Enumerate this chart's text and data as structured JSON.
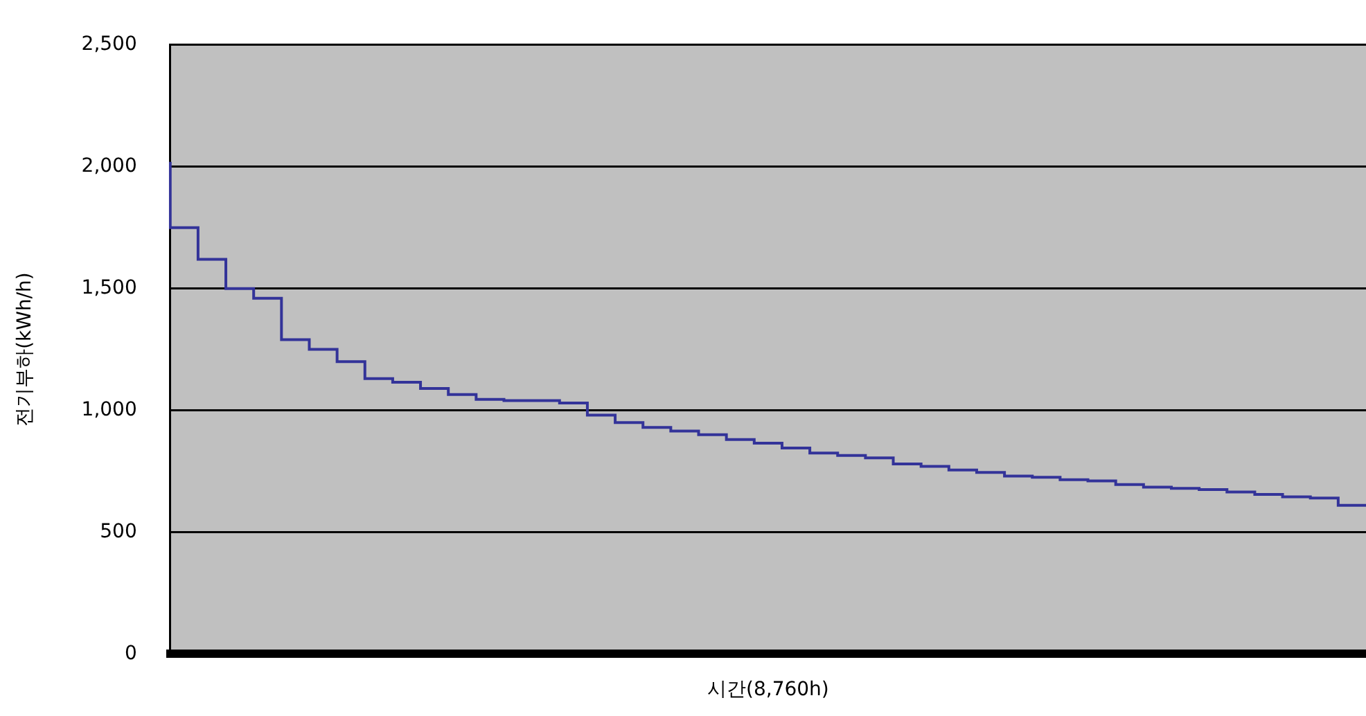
{
  "chart_data": {
    "type": "step",
    "xlabel": "시간(8,760h)",
    "ylabel": "전기부하(kWh/h)",
    "categories": [
      null,
      null,
      null,
      null,
      null,
      null,
      null,
      null,
      null,
      null,
      null,
      null,
      null,
      null,
      null,
      null,
      null,
      null,
      null,
      null,
      null,
      null,
      null,
      null,
      null,
      null,
      null,
      null,
      null,
      null,
      null,
      null,
      null,
      null,
      null,
      null,
      null,
      null,
      null,
      null,
      null,
      null,
      null,
      null
    ],
    "series": [
      {
        "color": "#333399",
        "values": [
          2020,
          1750,
          1620,
          1500,
          1460,
          1290,
          1250,
          1200,
          1130,
          1115,
          1090,
          1065,
          1045,
          1040,
          1040,
          1030,
          980,
          950,
          930,
          915,
          900,
          880,
          865,
          845,
          825,
          815,
          805,
          780,
          770,
          755,
          745,
          730,
          725,
          715,
          710,
          695,
          685,
          680,
          675,
          665,
          655,
          645,
          640,
          610
        ]
      }
    ],
    "ylim": [
      0,
      2500
    ],
    "yticks": [
      0,
      {
        "value": 500,
        "label": "500"
      },
      {
        "value": 1000,
        "label": "1,000"
      },
      {
        "value": 1500,
        "label": "1,500"
      },
      {
        "value": 2000,
        "label": "2,000"
      },
      {
        "value": 2500,
        "label": "2,500"
      }
    ],
    "grid": "y",
    "legend": false,
    "tick_labels": "y",
    "marker": "none",
    "line_style": "solid"
  }
}
